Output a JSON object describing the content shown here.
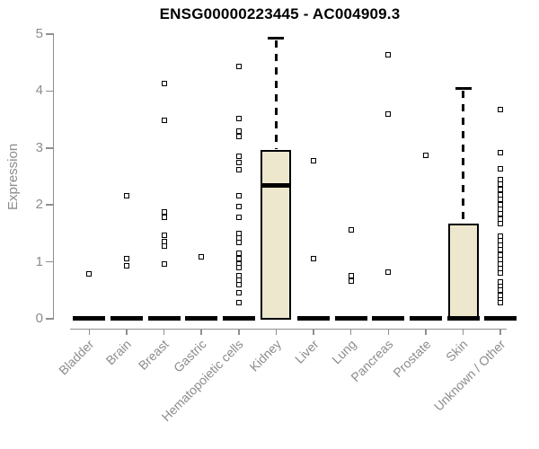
{
  "colors": {
    "title_color": "#000000",
    "axis_color": "#8f8f8f",
    "tick_label_color": "#8c8c8c",
    "box_fill": "#ede7ce",
    "box_border": "#000000",
    "median_color": "#000000",
    "outlier_color": "#000000",
    "background": "#ffffff"
  },
  "chart_data": {
    "type": "boxplot",
    "title": "ENSG00000223445 - AC004909.3",
    "ylabel": "Expression",
    "xlabel": "",
    "ylim": [
      0,
      5
    ],
    "yticks": [
      0,
      1,
      2,
      3,
      4,
      5
    ],
    "grid": false,
    "legend": "none",
    "categories": [
      "Bladder",
      "Brain",
      "Breast",
      "Gastric",
      "Hematopoietic cells",
      "Kidney",
      "Liver",
      "Lung",
      "Pancreas",
      "Prostate",
      "Skin",
      "Unknown / Other"
    ],
    "boxes": [
      {
        "category": "Bladder",
        "q1": 0,
        "median": 0,
        "q3": 0,
        "whisker_low": 0,
        "whisker_high": 0,
        "outliers": [
          0.79
        ]
      },
      {
        "category": "Brain",
        "q1": 0,
        "median": 0,
        "q3": 0,
        "whisker_low": 0,
        "whisker_high": 0,
        "outliers": [
          2.16,
          1.05,
          0.93
        ]
      },
      {
        "category": "Breast",
        "q1": 0,
        "median": 0,
        "q3": 0,
        "whisker_low": 0,
        "whisker_high": 0,
        "outliers": [
          4.13,
          3.49,
          1.88,
          1.78,
          1.46,
          1.36,
          1.28,
          0.97
        ]
      },
      {
        "category": "Gastric",
        "q1": 0,
        "median": 0,
        "q3": 0,
        "whisker_low": 0,
        "whisker_high": 0,
        "outliers": [
          1.09
        ]
      },
      {
        "category": "Hematopoietic cells",
        "q1": 0,
        "median": 0,
        "q3": 0,
        "whisker_low": 0,
        "whisker_high": 0,
        "outliers": [
          4.43,
          3.52,
          3.3,
          3.2,
          2.85,
          2.74,
          2.62,
          2.16,
          1.97,
          1.79,
          1.5,
          1.42,
          1.34,
          1.15,
          1.05,
          0.97,
          0.9,
          0.76,
          0.68,
          0.6,
          0.45,
          0.29
        ]
      },
      {
        "category": "Kidney",
        "q1": 0,
        "median": 2.35,
        "q3": 2.97,
        "whisker_low": 0,
        "whisker_high": 4.93,
        "outliers": []
      },
      {
        "category": "Liver",
        "q1": 0,
        "median": 0,
        "q3": 0,
        "whisker_low": 0,
        "whisker_high": 0,
        "outliers": [
          2.77,
          1.06
        ]
      },
      {
        "category": "Lung",
        "q1": 0,
        "median": 0,
        "q3": 0,
        "whisker_low": 0,
        "whisker_high": 0,
        "outliers": [
          1.56,
          0.76,
          0.67
        ]
      },
      {
        "category": "Pancreas",
        "q1": 0,
        "median": 0,
        "q3": 0,
        "whisker_low": 0,
        "whisker_high": 0,
        "outliers": [
          4.64,
          3.59,
          0.82
        ]
      },
      {
        "category": "Prostate",
        "q1": 0,
        "median": 0,
        "q3": 0,
        "whisker_low": 0,
        "whisker_high": 0,
        "outliers": [
          2.87
        ]
      },
      {
        "category": "Skin",
        "q1": 0,
        "median": 0,
        "q3": 1.67,
        "whisker_low": 0,
        "whisker_high": 4.05,
        "outliers": []
      },
      {
        "category": "Unknown / Other",
        "q1": 0,
        "median": 0,
        "q3": 0,
        "whisker_low": 0,
        "whisker_high": 0,
        "outliers": [
          3.67,
          2.92,
          2.64,
          2.45,
          2.36,
          2.27,
          2.18,
          2.09,
          2.0,
          1.92,
          1.84,
          1.75,
          1.67,
          1.45,
          1.37,
          1.29,
          1.21,
          1.12,
          1.04,
          0.96,
          0.88,
          0.8,
          0.65,
          0.57,
          0.51,
          0.41,
          0.33,
          0.28
        ]
      }
    ]
  }
}
